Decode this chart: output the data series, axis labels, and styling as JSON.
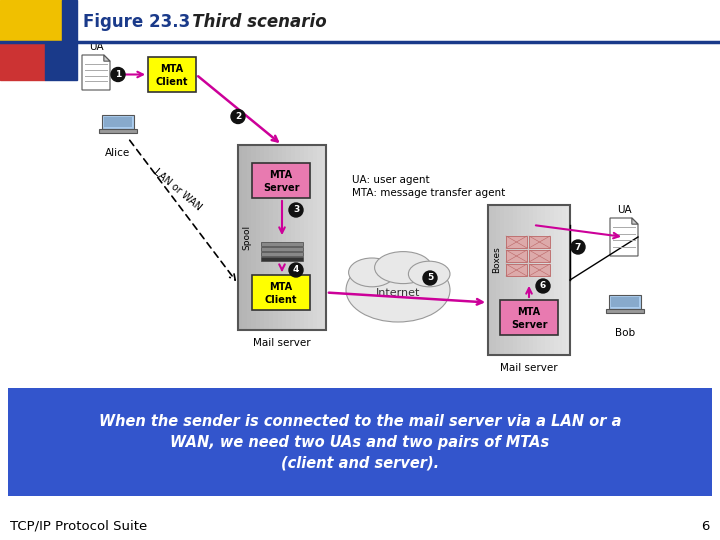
{
  "title": "Figure 23.3",
  "title_italic": "   Third scenario",
  "bg_color": "#ffffff",
  "blue_bar_color": "#1a3a8a",
  "yellow_box_color": "#ffff00",
  "pink_box_color": "#e87ab0",
  "arrow_color": "#cc0099",
  "bottom_bg_color": "#3355cc",
  "bottom_text": "When the sender is connected to the mail server via a LAN or a\nWAN, we need two UAs and two pairs of MTAs\n(client and server).",
  "footer_text": "TCP/IP Protocol Suite",
  "page_num": "6",
  "legend_line1": "UA: user agent",
  "legend_line2": "MTA: message transfer agent"
}
